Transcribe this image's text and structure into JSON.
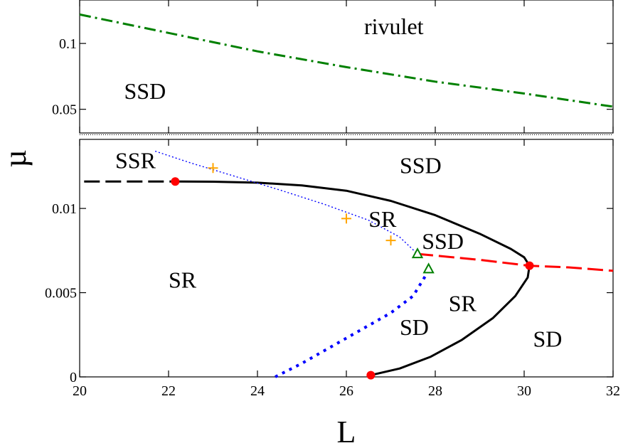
{
  "chart_data": {
    "type": "line",
    "x": {
      "label": "L",
      "lim": [
        20,
        32
      ],
      "ticks": [
        20,
        22,
        24,
        26,
        28,
        30,
        32
      ],
      "tick_labels": [
        "20",
        "22",
        "24",
        "26",
        "28",
        "30",
        "32"
      ]
    },
    "ylabel": "µ",
    "panels": [
      {
        "id": "top",
        "ylim": [
          0.032,
          0.133
        ],
        "yticks": [
          0.05,
          0.1
        ],
        "ytick_labels": [
          "0.05",
          "0.1"
        ],
        "region_labels": [
          {
            "text": "rivulet",
            "x": 26.4,
            "y": 0.107
          },
          {
            "text": "SSD",
            "x": 21.0,
            "y": 0.058
          }
        ],
        "series": [
          {
            "color": "#008000",
            "style": "dash-dot",
            "points": [
              [
                20,
                0.122
              ],
              [
                22,
                0.108
              ],
              [
                24,
                0.094
              ],
              [
                26,
                0.082
              ],
              [
                28,
                0.071
              ],
              [
                30,
                0.062
              ],
              [
                32,
                0.052
              ]
            ]
          }
        ]
      },
      {
        "id": "bottom",
        "ylim": [
          0,
          0.0141
        ],
        "yticks": [
          0,
          0.005,
          0.01
        ],
        "ytick_labels": [
          "0",
          "0.005",
          "0.01"
        ],
        "region_labels": [
          {
            "text": "SSR",
            "x": 20.8,
            "y": 0.0124
          },
          {
            "text": "SSD",
            "x": 27.2,
            "y": 0.0121
          },
          {
            "text": "SR",
            "x": 26.5,
            "y": 0.0089
          },
          {
            "text": "SSD",
            "x": 27.7,
            "y": 0.0076
          },
          {
            "text": "SR",
            "x": 22.0,
            "y": 0.0053
          },
          {
            "text": "SR",
            "x": 28.3,
            "y": 0.0039
          },
          {
            "text": "SD",
            "x": 27.2,
            "y": 0.0025
          },
          {
            "text": "SD",
            "x": 30.2,
            "y": 0.0018
          }
        ],
        "series": [
          {
            "color": "#000000",
            "style": "dashed",
            "points": [
              [
                20.1,
                0.0116
              ],
              [
                22.15,
                0.0116
              ]
            ]
          },
          {
            "color": "#000000",
            "style": "solid",
            "points": [
              [
                22.15,
                0.0116
              ],
              [
                23,
                0.01159
              ],
              [
                24,
                0.01153
              ],
              [
                25,
                0.01137
              ],
              [
                26,
                0.01105
              ],
              [
                27,
                0.01045
              ],
              [
                28,
                0.0096
              ],
              [
                29,
                0.0085
              ],
              [
                29.7,
                0.0076
              ],
              [
                30,
                0.0071
              ],
              [
                30.12,
                0.0066
              ],
              [
                30.08,
                0.0059
              ],
              [
                29.8,
                0.0048
              ],
              [
                29.3,
                0.0035
              ],
              [
                28.6,
                0.0022
              ],
              [
                27.9,
                0.0012
              ],
              [
                27.2,
                0.0005
              ],
              [
                26.55,
                0.0001
              ]
            ]
          },
          {
            "color": "#ff0000",
            "style": "dashed",
            "points": [
              [
                27.6,
                0.0073
              ],
              [
                28,
                0.0072
              ],
              [
                29,
                0.00695
              ],
              [
                30.12,
                0.0066
              ],
              [
                31,
                0.0065
              ],
              [
                32,
                0.0063
              ]
            ]
          },
          {
            "color": "#0000ff",
            "style": "dotted-heavy",
            "points": [
              [
                24.4,
                0.0
              ],
              [
                25,
                0.0008
              ],
              [
                26,
                0.0023
              ],
              [
                27,
                0.0038
              ],
              [
                27.5,
                0.0048
              ],
              [
                27.85,
                0.0063
              ]
            ]
          },
          {
            "color": "#0000ff",
            "style": "dotted-thin",
            "points": [
              [
                21.7,
                0.0134
              ],
              [
                22.5,
                0.0127
              ],
              [
                23.5,
                0.0119
              ],
              [
                24.5,
                0.0111
              ],
              [
                25.5,
                0.01025
              ],
              [
                26.5,
                0.0093
              ],
              [
                27.2,
                0.0083
              ],
              [
                27.6,
                0.0073
              ]
            ]
          }
        ],
        "markers": [
          {
            "shape": "circle",
            "color": "#ff0000",
            "points": [
              [
                22.15,
                0.0116
              ],
              [
                30.12,
                0.0066
              ],
              [
                26.55,
                0.0001
              ]
            ]
          },
          {
            "shape": "plus",
            "color": "#ffa500",
            "points": [
              [
                23.0,
                0.0124
              ],
              [
                26.0,
                0.0094
              ],
              [
                27.0,
                0.0081
              ]
            ]
          },
          {
            "shape": "triangle",
            "color": "#008000",
            "points": [
              [
                27.6,
                0.0073
              ],
              [
                27.85,
                0.0064
              ]
            ]
          }
        ]
      }
    ]
  }
}
